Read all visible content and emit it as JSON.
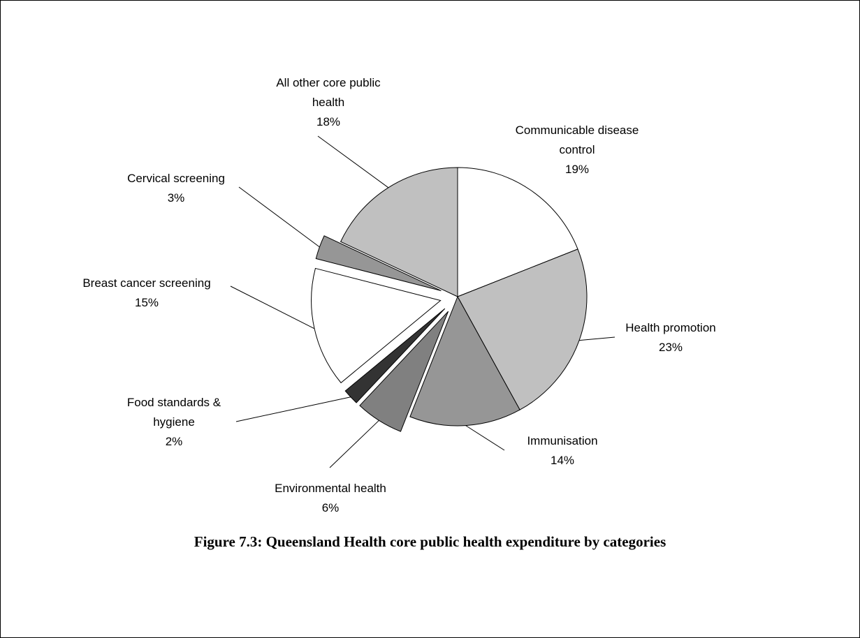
{
  "chart_data": {
    "type": "pie",
    "title": "Figure 7.3: Queensland Health core public health expenditure by categories",
    "categories": [
      "Communicable disease control",
      "Health promotion",
      "Immunisation",
      "Environmental health",
      "Food standards & hygiene",
      "Breast cancer screening",
      "Cervical screening",
      "All other core public health"
    ],
    "values": [
      19,
      23,
      14,
      6,
      2,
      15,
      3,
      18
    ],
    "value_labels": [
      "19%",
      "23%",
      "14%",
      "6%",
      "2%",
      "15%",
      "3%",
      "18%"
    ],
    "colors": [
      "#ffffff",
      "#c0c0c0",
      "#969696",
      "#808080",
      "#333333",
      "#ffffff",
      "#969696",
      "#c0c0c0"
    ],
    "explode": [
      false,
      false,
      false,
      true,
      true,
      true,
      true,
      false
    ]
  }
}
